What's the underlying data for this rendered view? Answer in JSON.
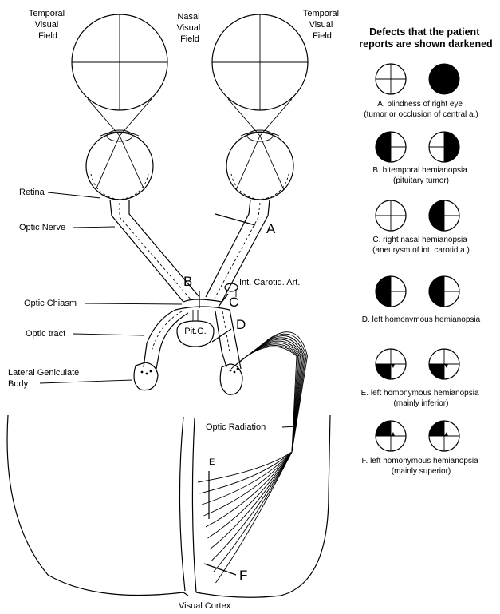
{
  "labels": {
    "temporal_left": [
      "Temporal",
      "Visual",
      "Field"
    ],
    "nasal": [
      "Nasal",
      "Visual",
      "Field"
    ],
    "temporal_right": [
      "Temporal",
      "Visual",
      "Field"
    ],
    "retina": "Retina",
    "optic_nerve": "Optic Nerve",
    "optic_chiasm": "Optic Chiasm",
    "optic_tract": "Optic tract",
    "lgb": [
      "Lateral Geniculate",
      "Body"
    ],
    "pit": "Pit.G.",
    "carotid": "Int. Carotid. Art.",
    "optic_radiation": "Optic Radiation",
    "visual_cortex": "Visual Cortex"
  },
  "lesions": {
    "A": "A",
    "B": "B",
    "C": "C",
    "D": "D",
    "E": "E",
    "F": "F"
  },
  "legend": {
    "title": [
      "Defects that the patient",
      "reports are shown darkened"
    ],
    "rows": [
      {
        "caption": [
          "A. blindness of right eye",
          "(tumor or occlusion of central a.)"
        ]
      },
      {
        "caption": [
          "B. bitemporal hemianopsia",
          "(pituitary tumor)"
        ]
      },
      {
        "caption": [
          "C. right nasal hemianopsia",
          "(aneurysm of int. carotid a.)"
        ]
      },
      {
        "caption": [
          "D. left homonymous hemianopsia"
        ]
      },
      {
        "caption": [
          "E. left homonymous hemianopsia",
          "(mainly inferior)"
        ]
      },
      {
        "caption": [
          "F. left homonymous hemianopsia",
          "(mainly superior)"
        ]
      }
    ]
  }
}
